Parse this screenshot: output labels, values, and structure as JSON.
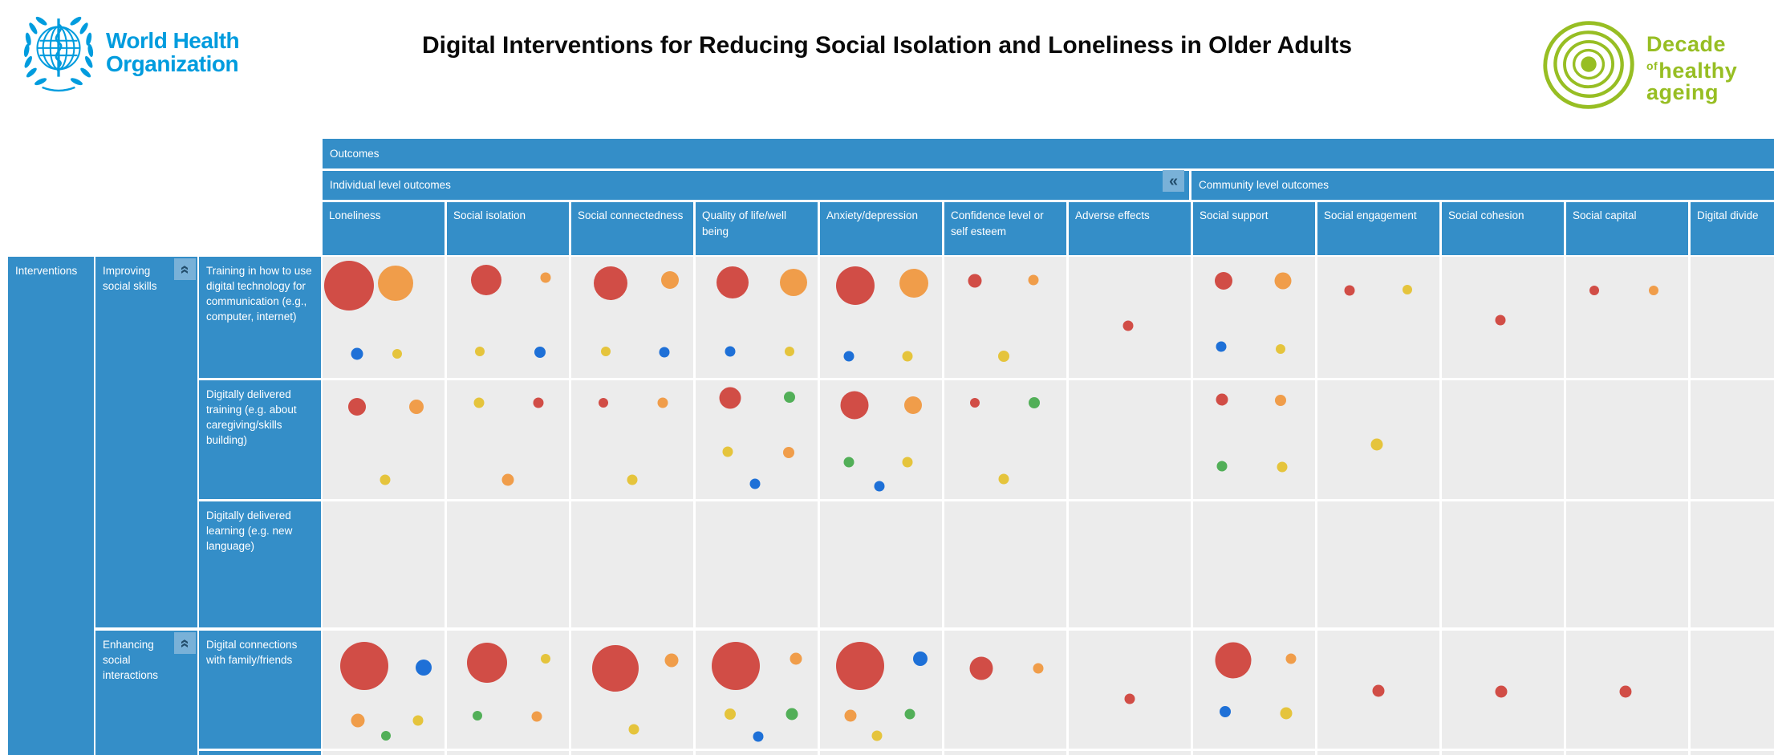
{
  "header": {
    "who_line1": "World Health",
    "who_line2": "Organization",
    "title": "Digital Interventions for Reducing Social Isolation and Loneliness in Older Adults",
    "decade_line1": "Decade",
    "decade_of": "of",
    "decade_line2": "healthy",
    "decade_line3": "ageing"
  },
  "matrix_ui": {
    "outcomes_label": "Outcomes",
    "individual_band_label": "Individual level outcomes",
    "community_band_label": "Community level outcomes",
    "interventions_label": "Interventions",
    "collapse_columns_icon": "«",
    "collapse_group_icon": "«"
  },
  "colors": {
    "header_blue": "#348ec8",
    "cell_gray": "#ececec",
    "collapse_bg": "#79b1d8",
    "collapse_fg": "#224d6b",
    "who_blue": "#009CDE",
    "decade_green": "#97be23"
  },
  "chart_data": {
    "type": "heatmap",
    "subtype": "bubble-matrix-evidence-gap-map",
    "title": "Digital Interventions for Reducing Social Isolation and Loneliness in Older Adults",
    "x_axis_label": "Outcomes",
    "y_axis_label": "Interventions",
    "column_groups": [
      {
        "label": "Individual level outcomes",
        "columns": [
          0,
          1,
          2,
          3,
          4,
          5,
          6
        ]
      },
      {
        "label": "Community level outcomes",
        "columns": [
          7,
          8,
          9,
          10,
          11
        ]
      }
    ],
    "columns": [
      "Loneliness",
      "Social isolation",
      "Social connectedness",
      "Quality of life/well being",
      "Anxiety/depression",
      "Confidence level or self esteem",
      "Adverse effects",
      "Social support",
      "Social engagement",
      "Social cohesion",
      "Social capital",
      "Digital divide"
    ],
    "row_groups": [
      {
        "label": "Improving social skills",
        "rows": [
          0,
          1,
          2
        ]
      },
      {
        "label": "Enhancing social interactions",
        "rows": [
          3
        ]
      }
    ],
    "rows": [
      "Training in how to use digital technology for communication (e.g., computer, internet)",
      "Digitally delivered training (e.g. about caregiving/skills building)",
      "Digitally delivered learning (e.g. new language)",
      "Digital connections with family/friends"
    ],
    "bubble_colors": {
      "red": "#d14d46",
      "orange": "#f09d4a",
      "yellow": "#e5c43c",
      "blue": "#1e70d7",
      "green": "#52af58"
    },
    "legend_position": "none",
    "grid": true,
    "cells": [
      {
        "row": 0,
        "col": 0,
        "bubbles": [
          {
            "color": "red",
            "d": 62,
            "x": 22,
            "y": 24
          },
          {
            "color": "orange",
            "d": 44,
            "x": 60,
            "y": 22
          },
          {
            "color": "blue",
            "d": 15,
            "x": 28,
            "y": 80
          },
          {
            "color": "yellow",
            "d": 12,
            "x": 61,
            "y": 80
          }
        ]
      },
      {
        "row": 0,
        "col": 1,
        "bubbles": [
          {
            "color": "red",
            "d": 38,
            "x": 32,
            "y": 19
          },
          {
            "color": "orange",
            "d": 13,
            "x": 81,
            "y": 17
          },
          {
            "color": "yellow",
            "d": 12,
            "x": 27,
            "y": 78
          },
          {
            "color": "blue",
            "d": 14,
            "x": 76,
            "y": 79
          }
        ]
      },
      {
        "row": 0,
        "col": 2,
        "bubbles": [
          {
            "color": "red",
            "d": 42,
            "x": 32,
            "y": 22
          },
          {
            "color": "orange",
            "d": 22,
            "x": 81,
            "y": 19
          },
          {
            "color": "yellow",
            "d": 12,
            "x": 28,
            "y": 78
          },
          {
            "color": "blue",
            "d": 13,
            "x": 76,
            "y": 79
          }
        ]
      },
      {
        "row": 0,
        "col": 3,
        "bubbles": [
          {
            "color": "red",
            "d": 40,
            "x": 30,
            "y": 21
          },
          {
            "color": "orange",
            "d": 34,
            "x": 80,
            "y": 21
          },
          {
            "color": "blue",
            "d": 13,
            "x": 28,
            "y": 78
          },
          {
            "color": "yellow",
            "d": 12,
            "x": 77,
            "y": 78
          }
        ]
      },
      {
        "row": 0,
        "col": 4,
        "bubbles": [
          {
            "color": "red",
            "d": 48,
            "x": 29,
            "y": 24
          },
          {
            "color": "orange",
            "d": 36,
            "x": 77,
            "y": 22
          },
          {
            "color": "blue",
            "d": 13,
            "x": 24,
            "y": 82
          },
          {
            "color": "yellow",
            "d": 13,
            "x": 72,
            "y": 82
          }
        ]
      },
      {
        "row": 0,
        "col": 5,
        "bubbles": [
          {
            "color": "red",
            "d": 17,
            "x": 25,
            "y": 20
          },
          {
            "color": "orange",
            "d": 13,
            "x": 73,
            "y": 19
          },
          {
            "color": "yellow",
            "d": 14,
            "x": 49,
            "y": 82
          }
        ]
      },
      {
        "row": 0,
        "col": 6,
        "bubbles": [
          {
            "color": "red",
            "d": 13,
            "x": 49,
            "y": 57
          }
        ]
      },
      {
        "row": 0,
        "col": 7,
        "bubbles": [
          {
            "color": "red",
            "d": 22,
            "x": 25,
            "y": 20
          },
          {
            "color": "orange",
            "d": 21,
            "x": 74,
            "y": 20
          },
          {
            "color": "blue",
            "d": 13,
            "x": 23,
            "y": 74
          },
          {
            "color": "yellow",
            "d": 12,
            "x": 72,
            "y": 76
          }
        ]
      },
      {
        "row": 0,
        "col": 8,
        "bubbles": [
          {
            "color": "red",
            "d": 13,
            "x": 26,
            "y": 28
          },
          {
            "color": "yellow",
            "d": 12,
            "x": 74,
            "y": 27
          }
        ]
      },
      {
        "row": 0,
        "col": 9,
        "bubbles": [
          {
            "color": "red",
            "d": 13,
            "x": 48,
            "y": 52
          }
        ]
      },
      {
        "row": 0,
        "col": 10,
        "bubbles": [
          {
            "color": "red",
            "d": 12,
            "x": 23,
            "y": 28
          },
          {
            "color": "orange",
            "d": 12,
            "x": 72,
            "y": 28
          }
        ]
      },
      {
        "row": 1,
        "col": 0,
        "bubbles": [
          {
            "color": "red",
            "d": 22,
            "x": 28,
            "y": 22
          },
          {
            "color": "orange",
            "d": 18,
            "x": 77,
            "y": 22
          },
          {
            "color": "yellow",
            "d": 13,
            "x": 51,
            "y": 84
          }
        ]
      },
      {
        "row": 1,
        "col": 1,
        "bubbles": [
          {
            "color": "yellow",
            "d": 13,
            "x": 26,
            "y": 19
          },
          {
            "color": "red",
            "d": 13,
            "x": 75,
            "y": 19
          },
          {
            "color": "orange",
            "d": 15,
            "x": 50,
            "y": 84
          }
        ]
      },
      {
        "row": 1,
        "col": 2,
        "bubbles": [
          {
            "color": "red",
            "d": 12,
            "x": 26,
            "y": 19
          },
          {
            "color": "orange",
            "d": 13,
            "x": 75,
            "y": 19
          },
          {
            "color": "yellow",
            "d": 13,
            "x": 50,
            "y": 84
          }
        ]
      },
      {
        "row": 1,
        "col": 3,
        "bubbles": [
          {
            "color": "red",
            "d": 27,
            "x": 28,
            "y": 15
          },
          {
            "color": "green",
            "d": 14,
            "x": 77,
            "y": 14
          },
          {
            "color": "yellow",
            "d": 13,
            "x": 26,
            "y": 60
          },
          {
            "color": "orange",
            "d": 14,
            "x": 76,
            "y": 61
          },
          {
            "color": "blue",
            "d": 13,
            "x": 49,
            "y": 87
          }
        ]
      },
      {
        "row": 1,
        "col": 4,
        "bubbles": [
          {
            "color": "red",
            "d": 35,
            "x": 28,
            "y": 21
          },
          {
            "color": "orange",
            "d": 22,
            "x": 76,
            "y": 21
          },
          {
            "color": "green",
            "d": 13,
            "x": 24,
            "y": 69
          },
          {
            "color": "yellow",
            "d": 13,
            "x": 72,
            "y": 69
          },
          {
            "color": "blue",
            "d": 13,
            "x": 49,
            "y": 89
          }
        ]
      },
      {
        "row": 1,
        "col": 5,
        "bubbles": [
          {
            "color": "red",
            "d": 12,
            "x": 25,
            "y": 19
          },
          {
            "color": "green",
            "d": 14,
            "x": 74,
            "y": 19
          },
          {
            "color": "yellow",
            "d": 13,
            "x": 49,
            "y": 83
          }
        ]
      },
      {
        "row": 1,
        "col": 7,
        "bubbles": [
          {
            "color": "red",
            "d": 15,
            "x": 24,
            "y": 16
          },
          {
            "color": "orange",
            "d": 14,
            "x": 72,
            "y": 17
          },
          {
            "color": "green",
            "d": 13,
            "x": 24,
            "y": 72
          },
          {
            "color": "yellow",
            "d": 13,
            "x": 73,
            "y": 73
          }
        ]
      },
      {
        "row": 1,
        "col": 8,
        "bubbles": [
          {
            "color": "yellow",
            "d": 15,
            "x": 49,
            "y": 54
          }
        ]
      },
      {
        "row": 3,
        "col": 0,
        "bubbles": [
          {
            "color": "red",
            "d": 60,
            "x": 34,
            "y": 30
          },
          {
            "color": "blue",
            "d": 20,
            "x": 83,
            "y": 31
          },
          {
            "color": "orange",
            "d": 17,
            "x": 29,
            "y": 76
          },
          {
            "color": "yellow",
            "d": 13,
            "x": 78,
            "y": 76
          },
          {
            "color": "green",
            "d": 12,
            "x": 52,
            "y": 89
          }
        ]
      },
      {
        "row": 3,
        "col": 1,
        "bubbles": [
          {
            "color": "red",
            "d": 50,
            "x": 33,
            "y": 27
          },
          {
            "color": "yellow",
            "d": 12,
            "x": 81,
            "y": 24
          },
          {
            "color": "green",
            "d": 12,
            "x": 25,
            "y": 72
          },
          {
            "color": "orange",
            "d": 13,
            "x": 74,
            "y": 73
          }
        ]
      },
      {
        "row": 3,
        "col": 2,
        "bubbles": [
          {
            "color": "red",
            "d": 58,
            "x": 36,
            "y": 32
          },
          {
            "color": "orange",
            "d": 17,
            "x": 82,
            "y": 25
          },
          {
            "color": "yellow",
            "d": 13,
            "x": 51,
            "y": 84
          }
        ]
      },
      {
        "row": 3,
        "col": 3,
        "bubbles": [
          {
            "color": "red",
            "d": 60,
            "x": 33,
            "y": 30
          },
          {
            "color": "orange",
            "d": 15,
            "x": 82,
            "y": 24
          },
          {
            "color": "yellow",
            "d": 14,
            "x": 28,
            "y": 71
          },
          {
            "color": "green",
            "d": 15,
            "x": 79,
            "y": 71
          },
          {
            "color": "blue",
            "d": 13,
            "x": 51,
            "y": 90
          }
        ]
      },
      {
        "row": 3,
        "col": 4,
        "bubbles": [
          {
            "color": "red",
            "d": 60,
            "x": 33,
            "y": 30
          },
          {
            "color": "blue",
            "d": 18,
            "x": 82,
            "y": 24
          },
          {
            "color": "orange",
            "d": 15,
            "x": 25,
            "y": 72
          },
          {
            "color": "green",
            "d": 13,
            "x": 74,
            "y": 71
          },
          {
            "color": "yellow",
            "d": 13,
            "x": 47,
            "y": 89
          }
        ]
      },
      {
        "row": 3,
        "col": 5,
        "bubbles": [
          {
            "color": "red",
            "d": 29,
            "x": 30,
            "y": 32
          },
          {
            "color": "orange",
            "d": 13,
            "x": 77,
            "y": 32
          }
        ]
      },
      {
        "row": 3,
        "col": 6,
        "bubbles": [
          {
            "color": "red",
            "d": 13,
            "x": 50,
            "y": 58
          }
        ]
      },
      {
        "row": 3,
        "col": 7,
        "bubbles": [
          {
            "color": "red",
            "d": 45,
            "x": 33,
            "y": 25
          },
          {
            "color": "orange",
            "d": 13,
            "x": 80,
            "y": 24
          },
          {
            "color": "blue",
            "d": 14,
            "x": 26,
            "y": 69
          },
          {
            "color": "yellow",
            "d": 15,
            "x": 76,
            "y": 70
          }
        ]
      },
      {
        "row": 3,
        "col": 8,
        "bubbles": [
          {
            "color": "red",
            "d": 15,
            "x": 50,
            "y": 51
          }
        ]
      },
      {
        "row": 3,
        "col": 9,
        "bubbles": [
          {
            "color": "red",
            "d": 15,
            "x": 49,
            "y": 52
          }
        ]
      },
      {
        "row": 3,
        "col": 10,
        "bubbles": [
          {
            "color": "red",
            "d": 15,
            "x": 49,
            "y": 52
          }
        ]
      }
    ]
  }
}
